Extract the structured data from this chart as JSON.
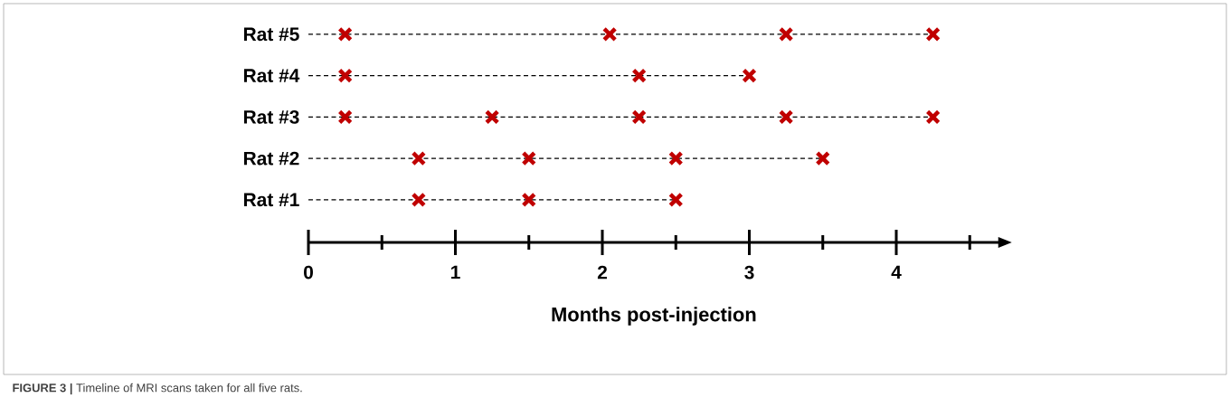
{
  "chart_data": {
    "type": "scatter",
    "orientation": "horizontal",
    "categories": [
      "Rat #5",
      "Rat #4",
      "Rat #3",
      "Rat #2",
      "Rat #1"
    ],
    "series": [
      {
        "color": "#c00000",
        "values": [
          0.25,
          0.25,
          0.25,
          0.75,
          0.75
        ]
      },
      {
        "color": "#c00000",
        "values": [
          2.05,
          2.25,
          1.25,
          1.5,
          1.5
        ]
      },
      {
        "color": "#c00000",
        "values": [
          3.25,
          3.0,
          2.25,
          2.5,
          2.5
        ]
      },
      {
        "color": "#c00000",
        "values": [
          4.25,
          null,
          3.25,
          3.5,
          null
        ]
      },
      {
        "color": "#c00000",
        "values": [
          null,
          null,
          4.25,
          null,
          null
        ]
      }
    ],
    "xlim": [
      0,
      4.7
    ],
    "xticks": [
      0,
      {
        "value": 0.5,
        "label": null
      },
      1,
      {
        "value": 1.5,
        "label": null
      },
      2,
      {
        "value": 2.5,
        "label": null
      },
      3,
      {
        "value": 3.5,
        "label": null
      },
      4,
      {
        "value": 4.5,
        "label": null
      }
    ],
    "xlabel": "Months post-injection",
    "marker": "cross",
    "line_style": "dashed",
    "grid": false,
    "annotations": [
      "**FIGURE 3 |** Timeline of MRI scans taken for all five rats."
    ]
  }
}
